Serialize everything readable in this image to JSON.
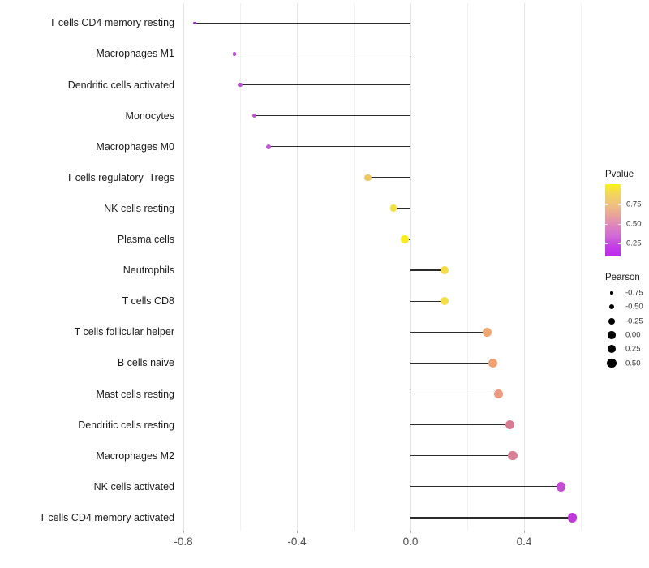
{
  "chart_data": {
    "type": "lollipop",
    "orientation": "horizontal",
    "title": "",
    "xlabel": "",
    "ylabel": "",
    "x_axis": {
      "tick_labels": [
        "-0.8",
        "-0.4",
        "0.0",
        "0.4"
      ],
      "tick_values": [
        -0.8,
        -0.4,
        0.0,
        0.4
      ],
      "gridline_values": [
        -0.8,
        -0.6,
        -0.4,
        -0.2,
        0.0,
        0.2,
        0.4,
        0.6
      ],
      "range": [
        -0.83,
        0.61
      ],
      "grid": "vertical-only"
    },
    "stem_color": "#2b2b2b",
    "background": "#ffffff",
    "points": [
      {
        "label": "T cells CD4 memory resting",
        "pearson": -0.76,
        "color": "#9232cc"
      },
      {
        "label": "Macrophages M1",
        "pearson": -0.62,
        "color": "#b54dd0"
      },
      {
        "label": "Dendritic cells activated",
        "pearson": -0.6,
        "color": "#b750d1"
      },
      {
        "label": "Monocytes",
        "pearson": -0.55,
        "color": "#ba55d1"
      },
      {
        "label": "Macrophages M0",
        "pearson": -0.5,
        "color": "#bd5bd3"
      },
      {
        "label": "T cells regulatory  Tregs",
        "pearson": -0.15,
        "color": "#eec762"
      },
      {
        "label": "NK cells resting",
        "pearson": -0.06,
        "color": "#f5e33d"
      },
      {
        "label": "Plasma cells",
        "pearson": -0.02,
        "color": "#f8ec20"
      },
      {
        "label": "Neutrophils",
        "pearson": 0.12,
        "color": "#f4dc4a"
      },
      {
        "label": "T cells CD8",
        "pearson": 0.12,
        "color": "#f4dd48"
      },
      {
        "label": "T cells follicular helper",
        "pearson": 0.27,
        "color": "#f0a873"
      },
      {
        "label": "B cells naive",
        "pearson": 0.29,
        "color": "#efa175"
      },
      {
        "label": "Mast cells resting",
        "pearson": 0.31,
        "color": "#ea9a80"
      },
      {
        "label": "Dendritic cells resting",
        "pearson": 0.35,
        "color": "#d87c91"
      },
      {
        "label": "Macrophages M2",
        "pearson": 0.36,
        "color": "#d67f96"
      },
      {
        "label": "NK cells activated",
        "pearson": 0.53,
        "color": "#c54dd3"
      },
      {
        "label": "T cells CD4 memory activated",
        "pearson": 0.57,
        "color": "#c139db"
      }
    ],
    "legend_pvalue": {
      "title": "Pvalue",
      "tick_labels": [
        "0.75",
        "0.50",
        "0.25"
      ],
      "gradient_top_to_bottom": [
        "#faf21c",
        "#f2d45e",
        "#efc17f",
        "#e9a399",
        "#de85bc",
        "#d169d6",
        "#c440e5",
        "#bb28f0"
      ]
    },
    "legend_pearson": {
      "title": "Pearson",
      "labels": [
        "-0.75",
        "-0.50",
        "-0.25",
        "0.00",
        "0.25",
        "0.50"
      ],
      "values": [
        -0.75,
        -0.5,
        -0.25,
        0.0,
        0.25,
        0.5
      ],
      "dot_color": "#000000"
    }
  }
}
